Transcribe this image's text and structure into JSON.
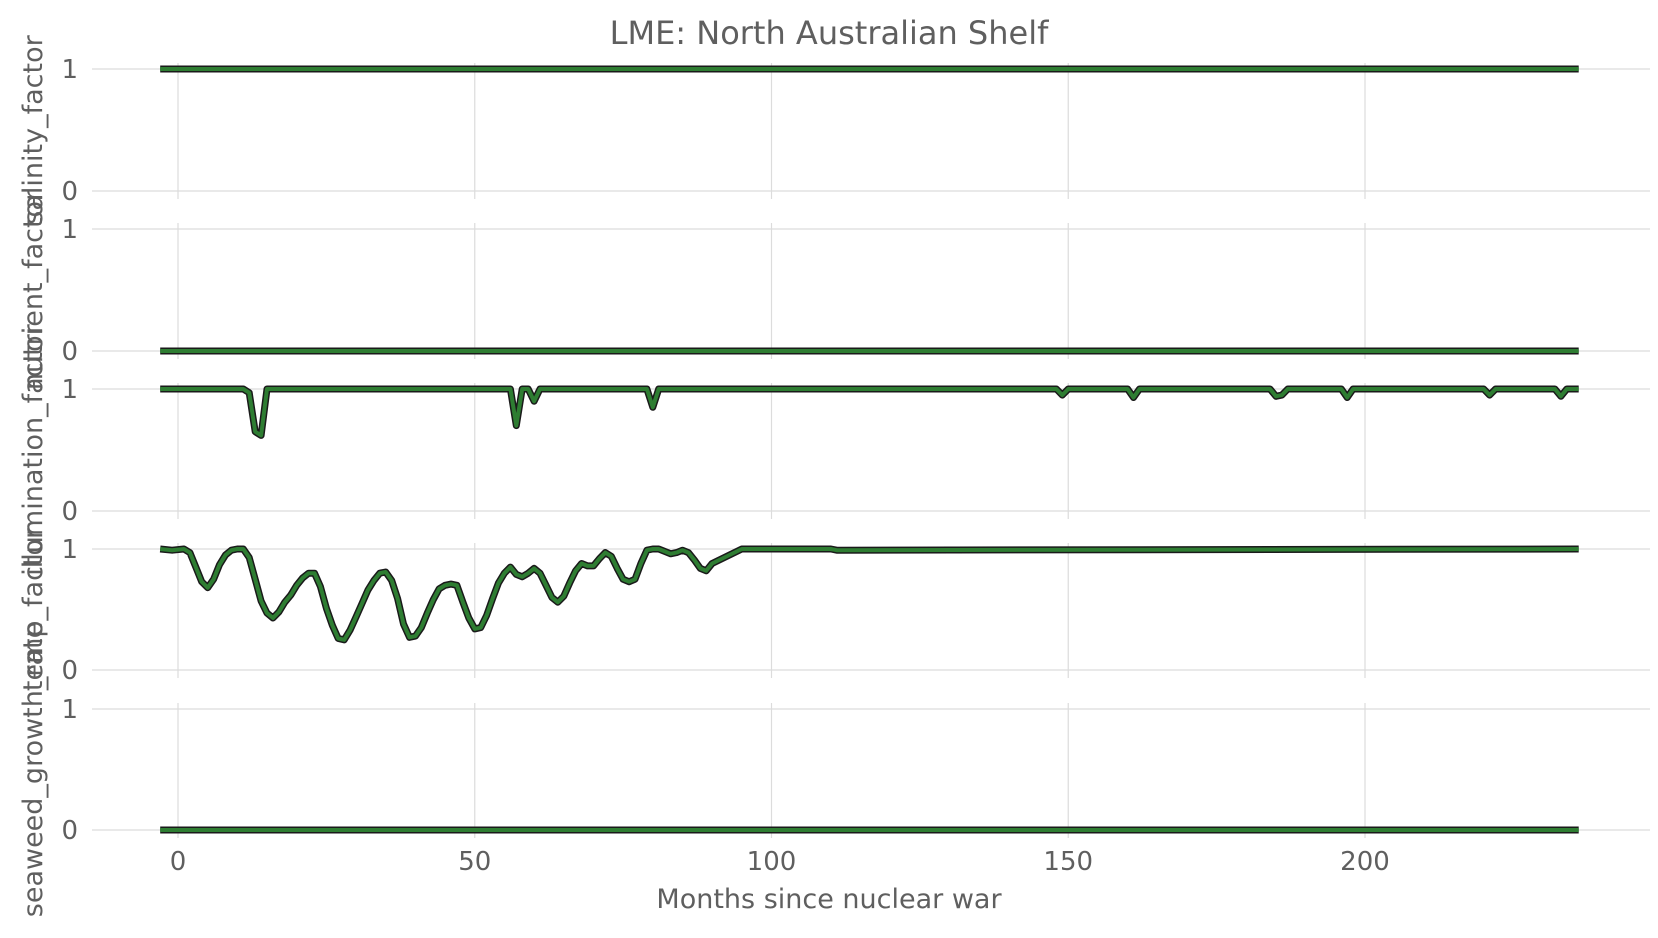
{
  "chart_data": {
    "type": "line",
    "title": "LME: North Australian Shelf",
    "xlabel": "Months since nuclear war",
    "x_ticks": [
      0,
      50,
      100,
      150,
      200
    ],
    "xlim": [
      -8,
      248
    ],
    "ylim": [
      0,
      1
    ],
    "y_ticks": [
      0,
      1
    ],
    "grid": true,
    "line_color": "#2e7d32",
    "edge_color": "#1a1a1a",
    "panels": [
      {
        "ylabel": "salinity_factor",
        "x": [
          -3,
          236
        ],
        "values": [
          1,
          1
        ]
      },
      {
        "ylabel": "nutrient_factor",
        "x": [
          -3,
          236
        ],
        "values": [
          0,
          0
        ]
      },
      {
        "ylabel": "illumination_factor",
        "x": [
          -3,
          11,
          12,
          13,
          14,
          15,
          56,
          57,
          58,
          59,
          60,
          61,
          62,
          79,
          80,
          81,
          148,
          149,
          150,
          160,
          161,
          162,
          184,
          185,
          186,
          187,
          196,
          197,
          198,
          220,
          221,
          222,
          232,
          233,
          234,
          236
        ],
        "values": [
          1,
          1,
          0.97,
          0.65,
          0.62,
          1,
          1,
          0.7,
          1,
          1,
          0.9,
          1,
          1,
          1,
          0.85,
          1,
          1,
          0.95,
          1,
          1,
          0.93,
          1,
          1,
          0.94,
          0.95,
          1,
          1,
          0.93,
          1,
          1,
          0.95,
          1,
          1,
          0.94,
          1,
          1
        ],
        "dips": []
      },
      {
        "ylabel": "temp_factor",
        "x": [
          -3,
          -1,
          1,
          2,
          3,
          4,
          5,
          6,
          7,
          8,
          9,
          10,
          11,
          12,
          13,
          14,
          15,
          16,
          17,
          18,
          19,
          20,
          21,
          22,
          23,
          24,
          25,
          26,
          27,
          28,
          29,
          30,
          31,
          32,
          33,
          34,
          35,
          36,
          37,
          38,
          39,
          40,
          41,
          42,
          43,
          44,
          45,
          46,
          47,
          48,
          49,
          50,
          51,
          52,
          53,
          54,
          55,
          56,
          57,
          58,
          59,
          60,
          61,
          62,
          63,
          64,
          65,
          66,
          67,
          68,
          69,
          70,
          71,
          72,
          73,
          74,
          75,
          76,
          77,
          78,
          79,
          80,
          81,
          82,
          83,
          84,
          85,
          86,
          87,
          88,
          89,
          90,
          95,
          97,
          99,
          110,
          111,
          236
        ],
        "values": [
          1,
          0.99,
          1,
          0.97,
          0.85,
          0.73,
          0.68,
          0.75,
          0.87,
          0.95,
          0.99,
          1,
          1,
          0.93,
          0.75,
          0.57,
          0.47,
          0.43,
          0.48,
          0.56,
          0.62,
          0.7,
          0.76,
          0.8,
          0.8,
          0.69,
          0.51,
          0.37,
          0.26,
          0.25,
          0.33,
          0.44,
          0.55,
          0.66,
          0.74,
          0.8,
          0.81,
          0.74,
          0.59,
          0.38,
          0.27,
          0.28,
          0.35,
          0.47,
          0.58,
          0.67,
          0.7,
          0.71,
          0.7,
          0.56,
          0.43,
          0.34,
          0.35,
          0.45,
          0.59,
          0.72,
          0.8,
          0.85,
          0.79,
          0.77,
          0.8,
          0.84,
          0.8,
          0.7,
          0.6,
          0.56,
          0.61,
          0.72,
          0.82,
          0.88,
          0.86,
          0.86,
          0.92,
          0.97,
          0.94,
          0.84,
          0.75,
          0.73,
          0.75,
          0.88,
          0.99,
          1,
          1,
          0.98,
          0.96,
          0.97,
          0.99,
          0.97,
          0.91,
          0.84,
          0.82,
          0.88,
          1,
          1,
          1,
          1,
          0.99,
          1
        ]
      },
      {
        "ylabel": "seaweed_growth_rate",
        "x": [
          -3,
          236
        ],
        "values": [
          0,
          0
        ]
      }
    ]
  }
}
